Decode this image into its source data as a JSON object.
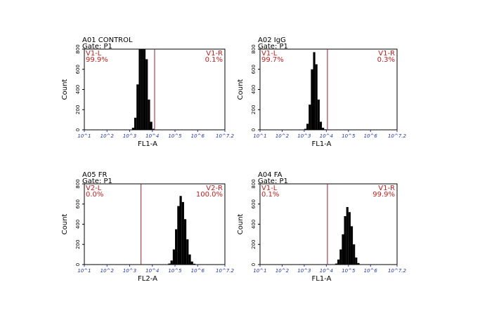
{
  "chart_data": [
    {
      "type": "histogram",
      "title": "A01 CONTROL",
      "subtitle": "Gate: P1",
      "x_label": "FL1-A",
      "y_label": "Count",
      "bins": [
        3.1,
        3.2,
        3.3,
        3.4,
        3.5,
        3.6,
        3.7,
        3.8,
        3.9,
        4.0,
        4.1
      ],
      "counts": [
        20,
        120,
        450,
        800,
        800,
        800,
        700,
        300,
        80,
        10
      ],
      "color": "#000000",
      "xlim": [
        1,
        7.2
      ],
      "xticks": [
        {
          "value": 1,
          "label": "10^1"
        },
        {
          "value": 2,
          "label": "10^2"
        },
        {
          "value": 3,
          "label": "10^3"
        },
        {
          "value": 4,
          "label": "10^4"
        },
        {
          "value": 5,
          "label": "10^5"
        },
        {
          "value": 6,
          "label": "10^6"
        },
        {
          "value": 7.2,
          "label": "10^7.2"
        }
      ],
      "ylim": [
        0,
        800
      ],
      "yticks": [
        0,
        200,
        400,
        600,
        800
      ],
      "gate_x": 4.1,
      "gate_color": "#a01c2c",
      "gate_left": {
        "name": "V1-L",
        "percent": "99.9%"
      },
      "gate_right": {
        "name": "V1-R",
        "percent": "0.1%"
      }
    },
    {
      "type": "histogram",
      "title": "A02 IgG",
      "subtitle": "Gate: P1",
      "x_label": "FL1-A",
      "y_label": "Count",
      "bins": [
        3.0,
        3.1,
        3.2,
        3.3,
        3.4,
        3.5,
        3.6,
        3.7,
        3.8,
        3.9,
        4.0
      ],
      "counts": [
        10,
        60,
        250,
        600,
        770,
        650,
        300,
        80,
        20,
        5
      ],
      "color": "#000000",
      "xlim": [
        1,
        7.2
      ],
      "xticks": [
        {
          "value": 1,
          "label": "10^1"
        },
        {
          "value": 2,
          "label": "10^2"
        },
        {
          "value": 3,
          "label": "10^3"
        },
        {
          "value": 4,
          "label": "10^4"
        },
        {
          "value": 5,
          "label": "10^5"
        },
        {
          "value": 6,
          "label": "10^6"
        },
        {
          "value": 7.2,
          "label": "10^7.2"
        }
      ],
      "ylim": [
        0,
        800
      ],
      "yticks": [
        0,
        200,
        400,
        600,
        800
      ],
      "gate_x": 4.05,
      "gate_color": "#a01c2c",
      "gate_left": {
        "name": "V1-L",
        "percent": "99.7%"
      },
      "gate_right": {
        "name": "V1-R",
        "percent": "0.3%"
      }
    },
    {
      "type": "histogram",
      "title": "A05 FR",
      "subtitle": "Gate: P1",
      "x_label": "FL2-A",
      "y_label": "Count",
      "bins": [
        4.7,
        4.8,
        4.9,
        5.0,
        5.1,
        5.2,
        5.3,
        5.4,
        5.5,
        5.6,
        5.7,
        5.8,
        5.9
      ],
      "counts": [
        10,
        40,
        150,
        350,
        580,
        680,
        620,
        450,
        250,
        100,
        30,
        8
      ],
      "color": "#000000",
      "xlim": [
        1,
        7.2
      ],
      "xticks": [
        {
          "value": 1,
          "label": "10^1"
        },
        {
          "value": 2,
          "label": "10^2"
        },
        {
          "value": 3,
          "label": "10^3"
        },
        {
          "value": 4,
          "label": "10^4"
        },
        {
          "value": 5,
          "label": "10^5"
        },
        {
          "value": 6,
          "label": "10^6"
        },
        {
          "value": 7.2,
          "label": "10^7.2"
        }
      ],
      "ylim": [
        0,
        800
      ],
      "yticks": [
        0,
        200,
        400,
        600,
        800
      ],
      "gate_x": 3.5,
      "gate_color": "#a01c2c",
      "gate_left": {
        "name": "V2-L",
        "percent": "0.0%"
      },
      "gate_right": {
        "name": "V2-R",
        "percent": "100.0%"
      }
    },
    {
      "type": "histogram",
      "title": "A04 FA",
      "subtitle": "Gate: P1",
      "x_label": "FL1-A",
      "y_label": "Count",
      "bins": [
        4.4,
        4.5,
        4.6,
        4.7,
        4.8,
        4.9,
        5.0,
        5.1,
        5.2,
        5.3,
        5.4,
        5.5
      ],
      "counts": [
        10,
        50,
        150,
        300,
        480,
        570,
        520,
        380,
        200,
        70,
        15
      ],
      "color": "#000000",
      "xlim": [
        1,
        7.2
      ],
      "xticks": [
        {
          "value": 1,
          "label": "10^1"
        },
        {
          "value": 2,
          "label": "10^2"
        },
        {
          "value": 3,
          "label": "10^3"
        },
        {
          "value": 4,
          "label": "10^4"
        },
        {
          "value": 5,
          "label": "10^5"
        },
        {
          "value": 6,
          "label": "10^6"
        },
        {
          "value": 7.2,
          "label": "10^7.2"
        }
      ],
      "ylim": [
        0,
        800
      ],
      "yticks": [
        0,
        200,
        400,
        600,
        800
      ],
      "gate_x": 4.05,
      "gate_color": "#a01c2c",
      "gate_left": {
        "name": "V1-L",
        "percent": "0.1%"
      },
      "gate_right": {
        "name": "V1-R",
        "percent": "99.9%"
      }
    }
  ]
}
